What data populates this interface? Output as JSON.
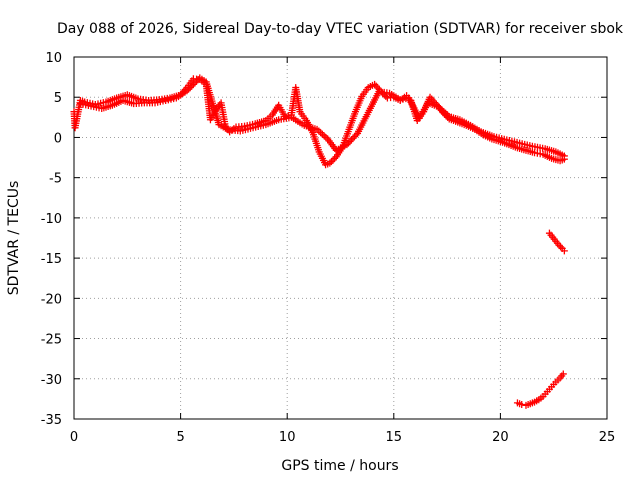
{
  "chart_data": {
    "type": "scatter",
    "title": "Day 088 of 2026, Sidereal Day-to-day VTEC variation (SDTVAR) for receiver sbok",
    "xlabel": "GPS time / hours",
    "ylabel": "SDTVAR / TECUs",
    "xlim": [
      0,
      25
    ],
    "ylim": [
      -35,
      10
    ],
    "xticks": [
      0,
      5,
      10,
      15,
      20,
      25
    ],
    "yticks": [
      10,
      5,
      0,
      -5,
      -10,
      -15,
      -20,
      -25,
      -30,
      -35
    ],
    "grid": true,
    "marker": "+",
    "series": [
      {
        "name": "SDTVAR",
        "color": "#ff0000",
        "x": [
          0.0,
          0.05,
          0.3,
          0.5,
          1.0,
          1.5,
          2.0,
          2.5,
          3.0,
          3.5,
          4.0,
          4.5,
          5.0,
          5.3,
          5.6,
          5.9,
          6.2,
          6.4,
          6.7,
          6.9,
          7.1,
          7.3,
          7.6,
          8.0,
          8.5,
          9.0,
          9.3,
          9.6,
          9.9,
          10.2,
          10.4,
          10.6,
          10.9,
          11.2,
          11.5,
          11.8,
          12.0,
          12.3,
          12.6,
          12.9,
          13.2,
          13.5,
          13.8,
          14.1,
          14.4,
          14.7,
          15.0,
          15.3,
          15.6,
          15.8,
          16.1,
          16.4,
          16.7,
          17.0,
          17.3,
          17.6,
          18.0,
          18.4,
          18.8,
          19.2,
          19.6,
          20.0,
          20.4,
          20.8,
          21.2,
          21.6,
          22.0,
          22.4,
          22.8,
          23.0
        ],
        "y": [
          3.2,
          1.2,
          4.6,
          4.4,
          4.1,
          4.4,
          4.9,
          5.3,
          4.8,
          4.6,
          4.7,
          4.9,
          5.3,
          6.2,
          7.3,
          7.2,
          6.6,
          2.2,
          3.6,
          4.3,
          1.4,
          0.7,
          1.3,
          1.4,
          1.7,
          2.1,
          2.8,
          4.0,
          2.6,
          2.8,
          6.2,
          3.2,
          2.1,
          0.6,
          -1.8,
          -3.4,
          -3.2,
          -2.4,
          -1.2,
          1.0,
          3.2,
          5.1,
          6.2,
          6.6,
          5.7,
          4.9,
          5.0,
          4.6,
          5.2,
          4.6,
          2.1,
          3.2,
          5.0,
          4.1,
          3.1,
          2.3,
          1.9,
          1.5,
          1.0,
          0.3,
          -0.2,
          -0.5,
          -0.9,
          -1.3,
          -1.6,
          -1.9,
          -2.1,
          -2.6,
          -2.9,
          -2.7
        ]
      },
      {
        "name": "SDTVAR",
        "color": "#ff0000",
        "x": [
          0.3,
          0.8,
          1.3,
          1.8,
          2.3,
          2.8,
          3.3,
          3.8,
          4.3,
          4.8,
          5.3,
          5.9,
          6.2,
          6.8,
          7.2,
          7.8,
          8.4,
          9.0,
          9.6,
          10.2,
          10.8,
          11.4,
          11.9,
          12.3,
          12.8,
          13.3,
          13.8,
          14.3,
          14.8,
          15.3,
          15.7,
          16.2,
          16.6,
          17.1,
          17.6,
          18.1,
          18.6,
          19.1,
          19.7,
          20.3,
          20.9,
          21.5,
          22.1,
          22.6,
          23.0
        ],
        "y": [
          4.2,
          3.9,
          3.6,
          4.0,
          4.6,
          4.2,
          4.3,
          4.3,
          4.6,
          4.9,
          5.8,
          7.4,
          6.9,
          1.6,
          1.0,
          0.8,
          1.2,
          1.6,
          2.2,
          2.5,
          1.5,
          1.0,
          -0.2,
          -1.6,
          -0.9,
          0.5,
          3.1,
          5.7,
          5.5,
          4.7,
          4.9,
          2.4,
          4.3,
          3.8,
          2.6,
          2.2,
          1.5,
          0.7,
          0.1,
          -0.3,
          -0.7,
          -1.1,
          -1.4,
          -1.8,
          -2.3
        ]
      },
      {
        "name": "SDTVAR",
        "color": "#ff0000",
        "x": [
          22.3,
          22.45,
          22.6,
          22.75,
          22.9,
          23.0
        ],
        "y": [
          -11.9,
          -12.4,
          -12.9,
          -13.4,
          -13.8,
          -14.1
        ]
      },
      {
        "name": "SDTVAR",
        "color": "#ff0000",
        "x": [
          20.8,
          21.0,
          21.2,
          21.4,
          21.6,
          21.8,
          22.0,
          22.1,
          22.2,
          22.4,
          22.6,
          22.8,
          22.95
        ],
        "y": [
          -33.0,
          -33.2,
          -33.3,
          -33.1,
          -32.9,
          -32.6,
          -32.2,
          -31.9,
          -31.6,
          -31.0,
          -30.4,
          -29.9,
          -29.4
        ]
      }
    ]
  }
}
